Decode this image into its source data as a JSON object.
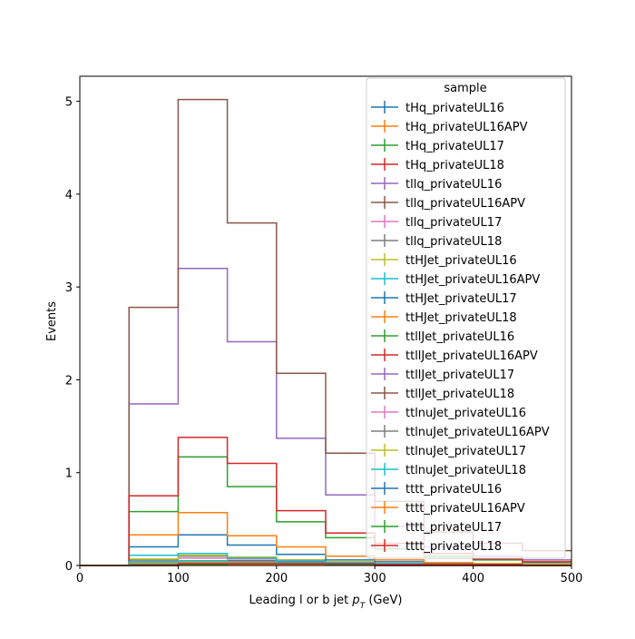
{
  "chart_data": {
    "type": "histogram-step",
    "xlabel": "Leading l or b jet",
    "xlabel_symbol": "p",
    "xlabel_sub": "T",
    "xlabel_unit": "(GeV)",
    "ylabel": "Events",
    "xlim": [
      0,
      500
    ],
    "ylim": [
      0,
      5.27
    ],
    "x_ticks": [
      0,
      100,
      200,
      300,
      400,
      500
    ],
    "x_tick_labels": [
      "0",
      "100",
      "200",
      "300",
      "400",
      "500"
    ],
    "y_ticks": [
      0,
      1,
      2,
      3,
      4,
      5
    ],
    "y_tick_labels": [
      "0",
      "1",
      "2",
      "3",
      "4",
      "5"
    ],
    "bin_edges": [
      0,
      50,
      100,
      150,
      200,
      250,
      300,
      350,
      400,
      450,
      500
    ],
    "grid": false,
    "legend": {
      "title": "sample",
      "placement": "top-right"
    },
    "series": [
      {
        "name": "tHq_privateUL16",
        "color": "#1f77b4",
        "values": [
          0,
          0.02,
          0.03,
          0.03,
          0.02,
          0.01,
          0.01,
          0,
          0,
          0
        ]
      },
      {
        "name": "tHq_privateUL16APV",
        "color": "#ff7f0e",
        "values": [
          0,
          0.02,
          0.03,
          0.03,
          0.02,
          0.01,
          0.01,
          0,
          0,
          0
        ]
      },
      {
        "name": "tHq_privateUL17",
        "color": "#2ca02c",
        "values": [
          0,
          0.02,
          0.04,
          0.04,
          0.03,
          0.01,
          0.01,
          0.01,
          0,
          0
        ]
      },
      {
        "name": "tHq_privateUL18",
        "color": "#d62728",
        "values": [
          0,
          0.03,
          0.05,
          0.05,
          0.04,
          0.02,
          0.01,
          0.01,
          0,
          0
        ]
      },
      {
        "name": "tllq_privateUL16",
        "color": "#9467bd",
        "values": [
          0,
          1.74,
          3.2,
          2.41,
          1.37,
          0.76,
          0.42,
          0.2,
          0.1,
          0.06
        ]
      },
      {
        "name": "tllq_privateUL16APV",
        "color": "#8c564b",
        "values": [
          0,
          2.78,
          5.02,
          3.69,
          2.07,
          1.21,
          0.69,
          0.36,
          0.24,
          0.16
        ]
      },
      {
        "name": "tllq_privateUL17",
        "color": "#e377c2",
        "values": [
          0,
          0.05,
          0.08,
          0.07,
          0.05,
          0.03,
          0.02,
          0.01,
          0.01,
          0
        ]
      },
      {
        "name": "tllq_privateUL18",
        "color": "#7f7f7f",
        "values": [
          0,
          0.06,
          0.1,
          0.08,
          0.06,
          0.03,
          0.02,
          0.01,
          0.01,
          0
        ]
      },
      {
        "name": "ttHJet_privateUL16",
        "color": "#bcbd22",
        "values": [
          0,
          0.07,
          0.11,
          0.09,
          0.06,
          0.04,
          0.02,
          0.01,
          0.01,
          0
        ]
      },
      {
        "name": "ttHJet_privateUL16APV",
        "color": "#17becf",
        "values": [
          0,
          0.11,
          0.13,
          0.08,
          0.05,
          0.03,
          0.02,
          0.01,
          0.01,
          0
        ]
      },
      {
        "name": "ttHJet_privateUL17",
        "color": "#1f77b4",
        "values": [
          0,
          0.2,
          0.33,
          0.22,
          0.12,
          0.06,
          0.04,
          0.02,
          0.01,
          0.01
        ]
      },
      {
        "name": "ttHJet_privateUL18",
        "color": "#ff7f0e",
        "values": [
          0,
          0.33,
          0.57,
          0.32,
          0.2,
          0.1,
          0.06,
          0.03,
          0.02,
          0.01
        ]
      },
      {
        "name": "ttllJet_privateUL16",
        "color": "#2ca02c",
        "values": [
          0,
          0.58,
          1.17,
          0.85,
          0.47,
          0.3,
          0.18,
          0.1,
          0.06,
          0.03
        ]
      },
      {
        "name": "ttllJet_privateUL16APV",
        "color": "#d62728",
        "values": [
          0,
          0.75,
          1.38,
          1.1,
          0.59,
          0.35,
          0.24,
          0.13,
          0.07,
          0.04
        ]
      },
      {
        "name": "ttllJet_privateUL17",
        "color": "#9467bd",
        "values": [
          0,
          0.01,
          0.02,
          0.02,
          0.01,
          0.01,
          0,
          0,
          0,
          0
        ]
      },
      {
        "name": "ttllJet_privateUL18",
        "color": "#8c564b",
        "values": [
          0,
          0.01,
          0.02,
          0.02,
          0.01,
          0.01,
          0,
          0,
          0,
          0
        ]
      },
      {
        "name": "ttlnuJet_privateUL16",
        "color": "#e377c2",
        "values": [
          0,
          0.02,
          0.03,
          0.02,
          0.02,
          0.01,
          0.01,
          0,
          0,
          0
        ]
      },
      {
        "name": "ttlnuJet_privateUL16APV",
        "color": "#7f7f7f",
        "values": [
          0,
          0.02,
          0.03,
          0.02,
          0.02,
          0.01,
          0.01,
          0,
          0,
          0
        ]
      },
      {
        "name": "ttlnuJet_privateUL17",
        "color": "#bcbd22",
        "values": [
          0,
          0.03,
          0.04,
          0.03,
          0.02,
          0.01,
          0.01,
          0,
          0,
          0
        ]
      },
      {
        "name": "ttlnuJet_privateUL18",
        "color": "#17becf",
        "values": [
          0,
          0.04,
          0.05,
          0.04,
          0.03,
          0.02,
          0.01,
          0.01,
          0,
          0
        ]
      },
      {
        "name": "tttt_privateUL16",
        "color": "#1f77b4",
        "values": [
          0,
          0,
          0.01,
          0.01,
          0.01,
          0.01,
          0.01,
          0.01,
          0,
          0
        ]
      },
      {
        "name": "tttt_privateUL16APV",
        "color": "#ff7f0e",
        "values": [
          0,
          0,
          0.01,
          0.01,
          0.01,
          0.01,
          0.01,
          0.01,
          0,
          0
        ]
      },
      {
        "name": "tttt_privateUL17",
        "color": "#2ca02c",
        "values": [
          0,
          0,
          0.01,
          0.02,
          0.02,
          0.01,
          0.01,
          0.01,
          0.01,
          0
        ]
      },
      {
        "name": "tttt_privateUL18",
        "color": "#d62728",
        "values": [
          0,
          0,
          0.02,
          0.02,
          0.02,
          0.02,
          0.01,
          0.01,
          0.01,
          0
        ]
      }
    ]
  }
}
